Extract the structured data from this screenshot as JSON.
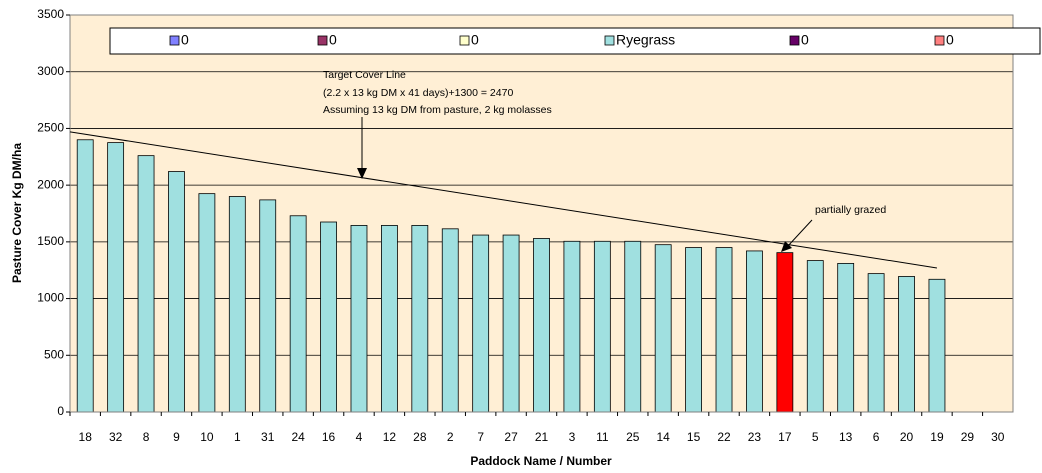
{
  "chart_data": {
    "type": "bar",
    "xlabel": "Paddock Name / Number",
    "ylabel": "Pasture Cover Kg DM/ha",
    "categories": [
      "18",
      "32",
      "8",
      "9",
      "10",
      "1",
      "31",
      "24",
      "16",
      "4",
      "12",
      "28",
      "2",
      "7",
      "27",
      "21",
      "3",
      "11",
      "25",
      "14",
      "15",
      "22",
      "23",
      "17",
      "5",
      "13",
      "6",
      "20",
      "19",
      "29",
      "30"
    ],
    "series": [
      {
        "name": "0",
        "color": "#8080ff"
      },
      {
        "name": "0",
        "color": "#993366"
      },
      {
        "name": "0",
        "color": "#ffffcc"
      },
      {
        "name": "Ryegrass",
        "color": "#a0e0e0",
        "values": [
          2400,
          2375,
          2260,
          2120,
          1925,
          1900,
          1870,
          1730,
          1675,
          1645,
          1645,
          1645,
          1615,
          1560,
          1560,
          1530,
          1505,
          1505,
          1505,
          1475,
          1450,
          1450,
          1420,
          1405,
          1335,
          1310,
          1220,
          1195,
          1170,
          null,
          null
        ],
        "colors": [
          "#a0e0e0",
          "#a0e0e0",
          "#a0e0e0",
          "#a0e0e0",
          "#a0e0e0",
          "#a0e0e0",
          "#a0e0e0",
          "#a0e0e0",
          "#a0e0e0",
          "#a0e0e0",
          "#a0e0e0",
          "#a0e0e0",
          "#a0e0e0",
          "#a0e0e0",
          "#a0e0e0",
          "#a0e0e0",
          "#a0e0e0",
          "#a0e0e0",
          "#a0e0e0",
          "#a0e0e0",
          "#a0e0e0",
          "#a0e0e0",
          "#a0e0e0",
          "#ff0000",
          "#a0e0e0",
          "#a0e0e0",
          "#a0e0e0",
          "#a0e0e0",
          "#a0e0e0",
          "#a0e0e0",
          "#a0e0e0"
        ]
      },
      {
        "name": "0",
        "color": "#660066"
      },
      {
        "name": "0",
        "color": "#ff8080"
      }
    ],
    "target_line": {
      "x": [
        -0.5,
        28
      ],
      "y": [
        2470,
        1270
      ]
    },
    "annotations": [
      "Target Cover Line",
      "(2.2 x 13 kg DM x 41 days)+1300 = 2470",
      "Assuming  13 kg DM from pasture, 2 kg molasses",
      "partially grazed"
    ],
    "ylim": [
      0,
      3500
    ],
    "yticks": [
      0,
      500,
      1000,
      1500,
      2000,
      2500,
      3000,
      3500
    ],
    "grid": true
  }
}
